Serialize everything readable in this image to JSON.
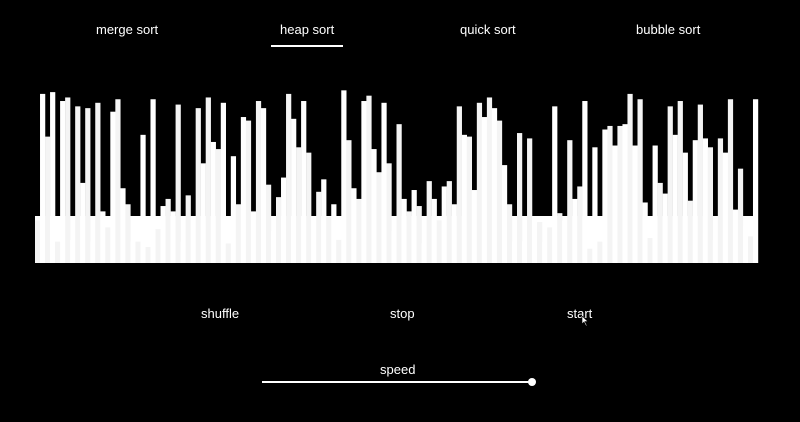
{
  "tabs": {
    "merge": "merge sort",
    "heap": "heap sort",
    "quick": "quick sort",
    "bubble": "bubble sort",
    "active": "heap"
  },
  "controls": {
    "shuffle": "shuffle",
    "stop": "stop",
    "start": "start"
  },
  "speed": {
    "label": "speed",
    "value": 1.0
  },
  "colors": {
    "background": "#000000",
    "foreground": "#ffffff"
  },
  "visualization": {
    "bar_count": 144,
    "values": [
      0.24,
      0.95,
      0.71,
      0.96,
      0.12,
      0.91,
      0.93,
      0.13,
      0.88,
      0.45,
      0.87,
      0.12,
      0.9,
      0.29,
      0.2,
      0.85,
      0.92,
      0.42,
      0.33,
      0.12,
      0.12,
      0.72,
      0.09,
      0.92,
      0.19,
      0.32,
      0.36,
      0.29,
      0.89,
      0.12,
      0.38,
      0.26,
      0.87,
      0.56,
      0.93,
      0.68,
      0.64,
      0.9,
      0.11,
      0.6,
      0.33,
      0.82,
      0.8,
      0.29,
      0.91,
      0.87,
      0.44,
      0.18,
      0.37,
      0.48,
      0.95,
      0.81,
      0.65,
      0.91,
      0.62,
      0.26,
      0.4,
      0.47,
      0.26,
      0.33,
      0.13,
      0.97,
      0.69,
      0.42,
      0.36,
      0.91,
      0.94,
      0.64,
      0.51,
      0.9,
      0.56,
      0.18,
      0.78,
      0.36,
      0.29,
      0.41,
      0.32,
      0.11,
      0.46,
      0.36,
      0.24,
      0.43,
      0.46,
      0.33,
      0.88,
      0.72,
      0.71,
      0.41,
      0.9,
      0.82,
      0.93,
      0.87,
      0.8,
      0.55,
      0.33,
      0.12,
      0.73,
      0.12,
      0.7,
      0.26,
      0.23,
      0.12,
      0.2,
      0.88,
      0.28,
      0.24,
      0.69,
      0.36,
      0.43,
      0.91,
      0.08,
      0.65,
      0.12,
      0.75,
      0.77,
      0.66,
      0.77,
      0.78,
      0.95,
      0.66,
      0.92,
      0.34,
      0.14,
      0.66,
      0.45,
      0.39,
      0.88,
      0.72,
      0.91,
      0.62,
      0.35,
      0.69,
      0.89,
      0.7,
      0.65,
      0.13,
      0.7,
      0.62,
      0.92,
      0.3,
      0.53,
      0.21,
      0.15,
      0.92
    ]
  }
}
